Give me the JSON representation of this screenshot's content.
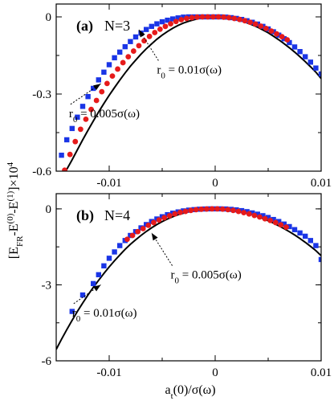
{
  "figure": {
    "ylabel_main": "[E",
    "ylabel_sub1": "FR",
    "ylabel_mid": "-E",
    "ylabel_sup1": "(0)",
    "ylabel_mid2": "-E",
    "ylabel_sup2": "(1)",
    "ylabel_tail": "]×10",
    "ylabel_sup3": "4",
    "xlabel_main": "a",
    "xlabel_sub": "t",
    "xlabel_tail": "(0)/σ(ω)"
  },
  "colors": {
    "series_001": "#1a35e6",
    "series_0005": "#e61a1a",
    "theory": "#000000"
  },
  "chart_data": [
    {
      "type": "scatter",
      "panel_label": "(a)",
      "panel_n": "N=3",
      "xlim": [
        -0.015,
        0.01
      ],
      "ylim": [
        -0.6,
        0.05
      ],
      "xticks": [
        -0.01,
        0,
        0.01
      ],
      "xtick_labels": [
        "-0.01",
        "0",
        "0.01"
      ],
      "yticks": [
        0,
        -0.3,
        -0.6
      ],
      "ytick_labels": [
        "0",
        "-0.3",
        "-0.6"
      ],
      "annotations": [
        {
          "label": "r",
          "sub": "0",
          "tail": " = 0.01σ(ω)",
          "target_x": -0.0072,
          "target_y": -0.05,
          "text_x": -0.0055,
          "text_y": -0.22
        },
        {
          "label": "r",
          "sub": "0",
          "tail": " = 0.005σ(ω)",
          "target_x": -0.0108,
          "target_y": -0.26,
          "text_x": -0.0138,
          "text_y": -0.39
        }
      ],
      "series": [
        {
          "name": "r0 = 0.01σ(ω)",
          "marker": "square",
          "x": [
            -0.0145,
            -0.014,
            -0.0135,
            -0.013,
            -0.0125,
            -0.012,
            -0.0115,
            -0.011,
            -0.0105,
            -0.01,
            -0.0095,
            -0.009,
            -0.0085,
            -0.008,
            -0.0075,
            -0.007,
            -0.0065,
            -0.006,
            -0.0055,
            -0.005,
            -0.0045,
            -0.004,
            -0.0035,
            -0.003,
            -0.0025,
            -0.002,
            -0.0015,
            -0.001,
            -0.0005,
            0,
            0.0005,
            0.001,
            0.0015,
            0.002,
            0.0025,
            0.003,
            0.0035,
            0.004,
            0.0045,
            0.005,
            0.0055,
            0.006,
            0.0065,
            0.007,
            0.0075,
            0.008,
            0.0085,
            0.009,
            0.0095,
            0.01
          ],
          "y": [
            -0.538,
            -0.478,
            -0.434,
            -0.39,
            -0.348,
            -0.31,
            -0.278,
            -0.245,
            -0.215,
            -0.186,
            -0.159,
            -0.137,
            -0.116,
            -0.096,
            -0.078,
            -0.063,
            -0.049,
            -0.037,
            -0.027,
            -0.019,
            -0.013,
            -0.008,
            -0.004,
            -0.001,
            0,
            0,
            0,
            0,
            0,
            0,
            0,
            -0.001,
            -0.003,
            -0.006,
            -0.01,
            -0.015,
            -0.021,
            -0.028,
            -0.037,
            -0.047,
            -0.058,
            -0.071,
            -0.085,
            -0.1,
            -0.117,
            -0.135,
            -0.155,
            -0.176,
            -0.199,
            -0.222
          ]
        },
        {
          "name": "r0 = 0.005σ(ω)",
          "marker": "circle",
          "x": [
            -0.0142,
            -0.0137,
            -0.0132,
            -0.0127,
            -0.0122,
            -0.0117,
            -0.0112,
            -0.0107,
            -0.0102,
            -0.0097,
            -0.0092,
            -0.0087,
            -0.0082,
            -0.0077,
            -0.0072,
            -0.0067,
            -0.0062,
            -0.0057,
            -0.0052,
            -0.0047,
            -0.0042,
            -0.0037,
            -0.0032,
            -0.0027,
            -0.0022,
            -0.0017,
            -0.0012,
            -0.0007,
            -0.0002,
            0.0003,
            0.0008,
            0.0013,
            0.0018,
            0.0023,
            0.0028,
            0.0033,
            0.0038,
            0.0043,
            0.0048,
            0.0053,
            0.0058,
            0.0063,
            0.0068
          ],
          "y": [
            -0.596,
            -0.535,
            -0.485,
            -0.437,
            -0.398,
            -0.36,
            -0.325,
            -0.291,
            -0.259,
            -0.23,
            -0.203,
            -0.178,
            -0.155,
            -0.133,
            -0.112,
            -0.093,
            -0.076,
            -0.061,
            -0.048,
            -0.037,
            -0.027,
            -0.018,
            -0.011,
            -0.006,
            -0.003,
            -0.001,
            0,
            0,
            0,
            0,
            -0.001,
            -0.003,
            -0.006,
            -0.01,
            -0.015,
            -0.021,
            -0.028,
            -0.036,
            -0.045,
            -0.055,
            -0.066,
            -0.077,
            -0.089
          ]
        },
        {
          "name": "theory",
          "marker": "line",
          "x": [
            -0.0141,
            -0.0135,
            -0.013,
            -0.0125,
            -0.012,
            -0.0115,
            -0.011,
            -0.0105,
            -0.01,
            -0.0095,
            -0.009,
            -0.0085,
            -0.008,
            -0.0075,
            -0.007,
            -0.0065,
            -0.006,
            -0.0055,
            -0.005,
            -0.0045,
            -0.004,
            -0.0035,
            -0.003,
            -0.0025,
            -0.002,
            -0.0015,
            -0.001,
            -0.0005,
            0,
            0.0005,
            0.001,
            0.0015,
            0.002,
            0.0025,
            0.003,
            0.0035,
            0.004,
            0.0045,
            0.005,
            0.0055,
            0.006,
            0.0065,
            0.007,
            0.0075,
            0.008,
            0.0085,
            0.009,
            0.0095,
            0.01
          ],
          "y": [
            -0.6,
            -0.556,
            -0.517,
            -0.478,
            -0.441,
            -0.405,
            -0.37,
            -0.337,
            -0.305,
            -0.275,
            -0.246,
            -0.218,
            -0.192,
            -0.168,
            -0.145,
            -0.124,
            -0.105,
            -0.087,
            -0.071,
            -0.057,
            -0.044,
            -0.033,
            -0.024,
            -0.017,
            -0.011,
            -0.006,
            -0.003,
            -0.001,
            0,
            -0.001,
            -0.003,
            -0.006,
            -0.01,
            -0.016,
            -0.023,
            -0.031,
            -0.04,
            -0.051,
            -0.062,
            -0.075,
            -0.089,
            -0.104,
            -0.12,
            -0.137,
            -0.155,
            -0.174,
            -0.194,
            -0.215,
            -0.24
          ]
        }
      ]
    },
    {
      "type": "scatter",
      "panel_label": "(b)",
      "panel_n": "N=4",
      "xlim": [
        -0.015,
        0.01
      ],
      "ylim": [
        -6,
        0.6
      ],
      "xticks": [
        -0.01,
        0,
        0.01
      ],
      "xtick_labels": [
        "-0.01",
        "0",
        "0.01"
      ],
      "yticks": [
        0,
        -3,
        -6
      ],
      "ytick_labels": [
        "0",
        "-3",
        "-6"
      ],
      "annotations": [
        {
          "label": "r",
          "sub": "0",
          "tail": " = 0.005σ(ω)",
          "target_x": -0.006,
          "target_y": -0.95,
          "text_x": -0.0042,
          "text_y": -2.75
        },
        {
          "label": "r",
          "sub": "0",
          "tail": " = 0.01σ(ω)",
          "target_x": -0.0108,
          "target_y": -3.0,
          "text_x": -0.0135,
          "text_y": -4.25
        }
      ],
      "series": [
        {
          "name": "r0 = 0.01σ(ω)",
          "marker": "square",
          "x": [
            -0.0135,
            -0.0125,
            -0.0115,
            -0.011,
            -0.0105,
            -0.01,
            -0.0095,
            -0.009,
            -0.0085,
            -0.008,
            -0.0075,
            -0.007,
            -0.0065,
            -0.006,
            -0.0055,
            -0.005,
            -0.0045,
            -0.004,
            -0.0035,
            -0.003,
            -0.0025,
            -0.002,
            -0.0015,
            -0.001,
            -0.0005,
            0,
            0.0005,
            0.001,
            0.0015,
            0.002,
            0.0025,
            0.003,
            0.0035,
            0.004,
            0.0045,
            0.005,
            0.0055,
            0.006,
            0.0065,
            0.007,
            0.0075,
            0.008,
            0.0085,
            0.009,
            0.0095,
            0.01
          ],
          "y": [
            -4.05,
            -3.4,
            -2.95,
            -2.6,
            -2.25,
            -1.95,
            -1.7,
            -1.45,
            -1.25,
            -1.05,
            -0.9,
            -0.75,
            -0.62,
            -0.5,
            -0.4,
            -0.31,
            -0.23,
            -0.17,
            -0.12,
            -0.08,
            -0.05,
            -0.03,
            -0.015,
            -0.005,
            0,
            0,
            0,
            -0.005,
            -0.02,
            -0.04,
            -0.07,
            -0.11,
            -0.16,
            -0.21,
            -0.27,
            -0.34,
            -0.42,
            -0.5,
            -0.6,
            -0.7,
            -0.82,
            -0.95,
            -1.08,
            -1.25,
            -1.45,
            -2.0
          ]
        },
        {
          "name": "r0 = 0.005σ(ω)",
          "marker": "circle",
          "x": [
            -0.0083,
            -0.0078,
            -0.0073,
            -0.0068,
            -0.0063,
            -0.0058,
            -0.0053,
            -0.0048,
            -0.0043,
            -0.0038,
            -0.0033,
            -0.0028,
            -0.0023,
            -0.0018,
            -0.0013,
            -0.0008,
            -0.0003,
            0.0002,
            0.0007,
            0.0012,
            0.0017,
            0.0022,
            0.0027,
            0.0032,
            0.0037,
            0.0042,
            0.0047,
            0.0052,
            0.0057,
            0.0062,
            0.0067
          ],
          "y": [
            -1.2,
            -1.05,
            -0.9,
            -0.78,
            -0.65,
            -0.54,
            -0.44,
            -0.35,
            -0.27,
            -0.2,
            -0.14,
            -0.1,
            -0.06,
            -0.03,
            -0.015,
            -0.005,
            0,
            0,
            -0.01,
            -0.03,
            -0.06,
            -0.1,
            -0.15,
            -0.2,
            -0.26,
            -0.32,
            -0.39,
            -0.46,
            -0.54,
            -0.63,
            -0.72
          ]
        },
        {
          "name": "theory",
          "marker": "line",
          "x": [
            -0.015,
            -0.0145,
            -0.014,
            -0.0135,
            -0.013,
            -0.0125,
            -0.012,
            -0.0115,
            -0.011,
            -0.0105,
            -0.01,
            -0.0095,
            -0.009,
            -0.0085,
            -0.008,
            -0.0075,
            -0.007,
            -0.0065,
            -0.006,
            -0.0055,
            -0.005,
            -0.0045,
            -0.004,
            -0.0035,
            -0.003,
            -0.0025,
            -0.002,
            -0.0015,
            -0.001,
            -0.0005,
            0,
            0.0005,
            0.001,
            0.0015,
            0.002,
            0.0025,
            0.003,
            0.0035,
            0.004,
            0.0045,
            0.005,
            0.0055,
            0.006,
            0.0065,
            0.007,
            0.0075,
            0.008,
            0.0085,
            0.009,
            0.0095,
            0.01
          ],
          "y": [
            -5.55,
            -5.15,
            -4.77,
            -4.4,
            -4.05,
            -3.72,
            -3.4,
            -3.1,
            -2.82,
            -2.55,
            -2.29,
            -2.05,
            -1.82,
            -1.6,
            -1.4,
            -1.22,
            -1.05,
            -0.89,
            -0.75,
            -0.62,
            -0.5,
            -0.4,
            -0.31,
            -0.23,
            -0.17,
            -0.12,
            -0.07,
            -0.04,
            -0.02,
            -0.005,
            0,
            -0.005,
            -0.02,
            -0.04,
            -0.07,
            -0.12,
            -0.17,
            -0.23,
            -0.3,
            -0.38,
            -0.47,
            -0.56,
            -0.67,
            -0.78,
            -0.9,
            -1.03,
            -1.17,
            -1.32,
            -1.48,
            -1.65,
            -1.85
          ]
        }
      ]
    }
  ]
}
